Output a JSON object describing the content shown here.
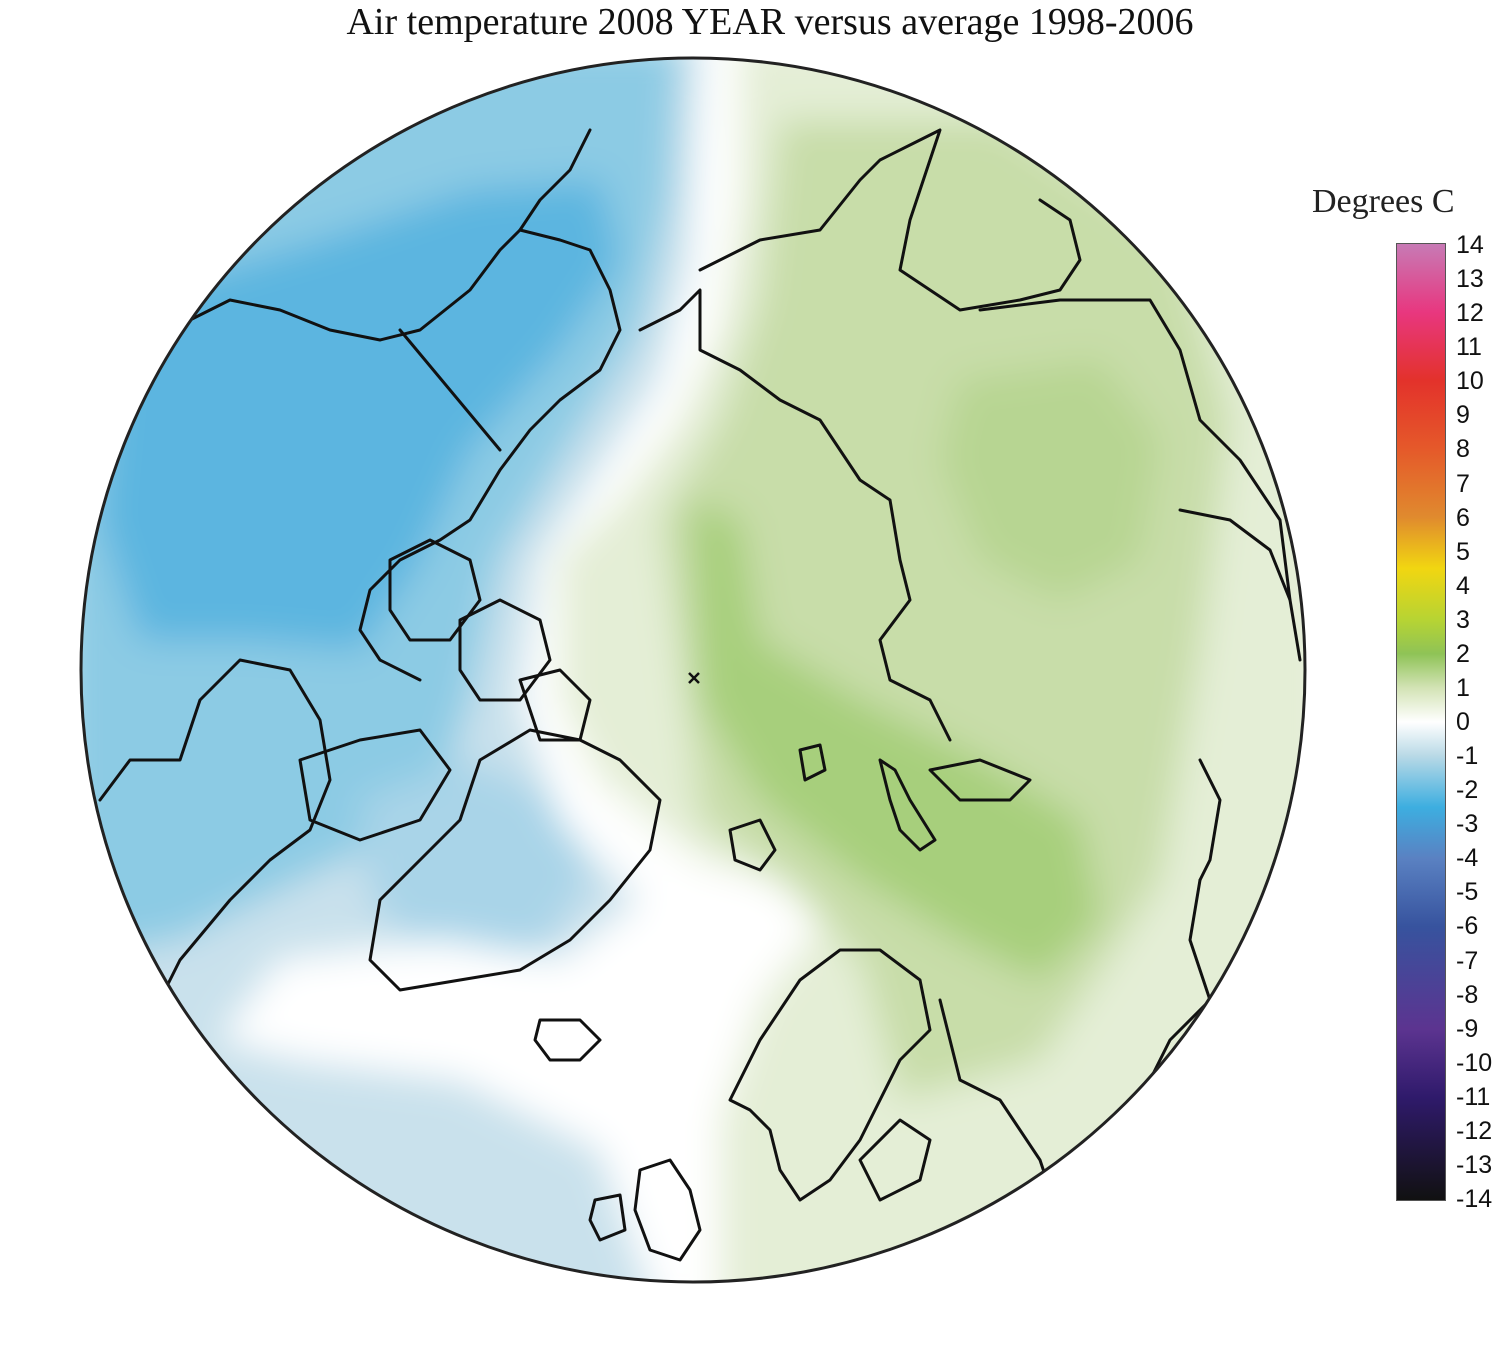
{
  "title": "Air temperature 2008 YEAR versus average 1998-2006",
  "legend": {
    "title": "Degrees C",
    "min": -14,
    "max": 14,
    "ticks": [
      "14",
      "13",
      "12",
      "11",
      "10",
      "9",
      "8",
      "7",
      "6",
      "5",
      "4",
      "3",
      "2",
      "1",
      "0",
      "-1",
      "-2",
      "-3",
      "-4",
      "-5",
      "-6",
      "-7",
      "-8",
      "-9",
      "-10",
      "-11",
      "-12",
      "-13",
      "-14"
    ],
    "stops": [
      {
        "v": 14,
        "color": "#c77ab5"
      },
      {
        "v": 12,
        "color": "#e8377f"
      },
      {
        "v": 10,
        "color": "#e3322b"
      },
      {
        "v": 8,
        "color": "#e5592a"
      },
      {
        "v": 6,
        "color": "#e08a2e"
      },
      {
        "v": 4.5,
        "color": "#f1d611"
      },
      {
        "v": 3,
        "color": "#b7d433"
      },
      {
        "v": 2,
        "color": "#8fc356"
      },
      {
        "v": 1,
        "color": "#d3e3b5"
      },
      {
        "v": 0,
        "color": "#ffffff"
      },
      {
        "v": -1,
        "color": "#b8d9e6"
      },
      {
        "v": -2.5,
        "color": "#3daee0"
      },
      {
        "v": -4,
        "color": "#5a81c2"
      },
      {
        "v": -6,
        "color": "#37539e"
      },
      {
        "v": -9,
        "color": "#5c3490"
      },
      {
        "v": -11,
        "color": "#2f1a6b"
      },
      {
        "v": -14,
        "color": "#111111"
      }
    ]
  },
  "map": {
    "projection": "north polar stereographic",
    "colors": {
      "cold_light": "#c9e1ec",
      "cold_mid": "#8ccbe4",
      "cold_strong": "#5bb5e0",
      "neutral": "#ffffff",
      "warm_light": "#e4eed6",
      "warm_mid": "#c8dda9",
      "warm_strong": "#a7cf7c",
      "coastline": "#111111"
    }
  }
}
